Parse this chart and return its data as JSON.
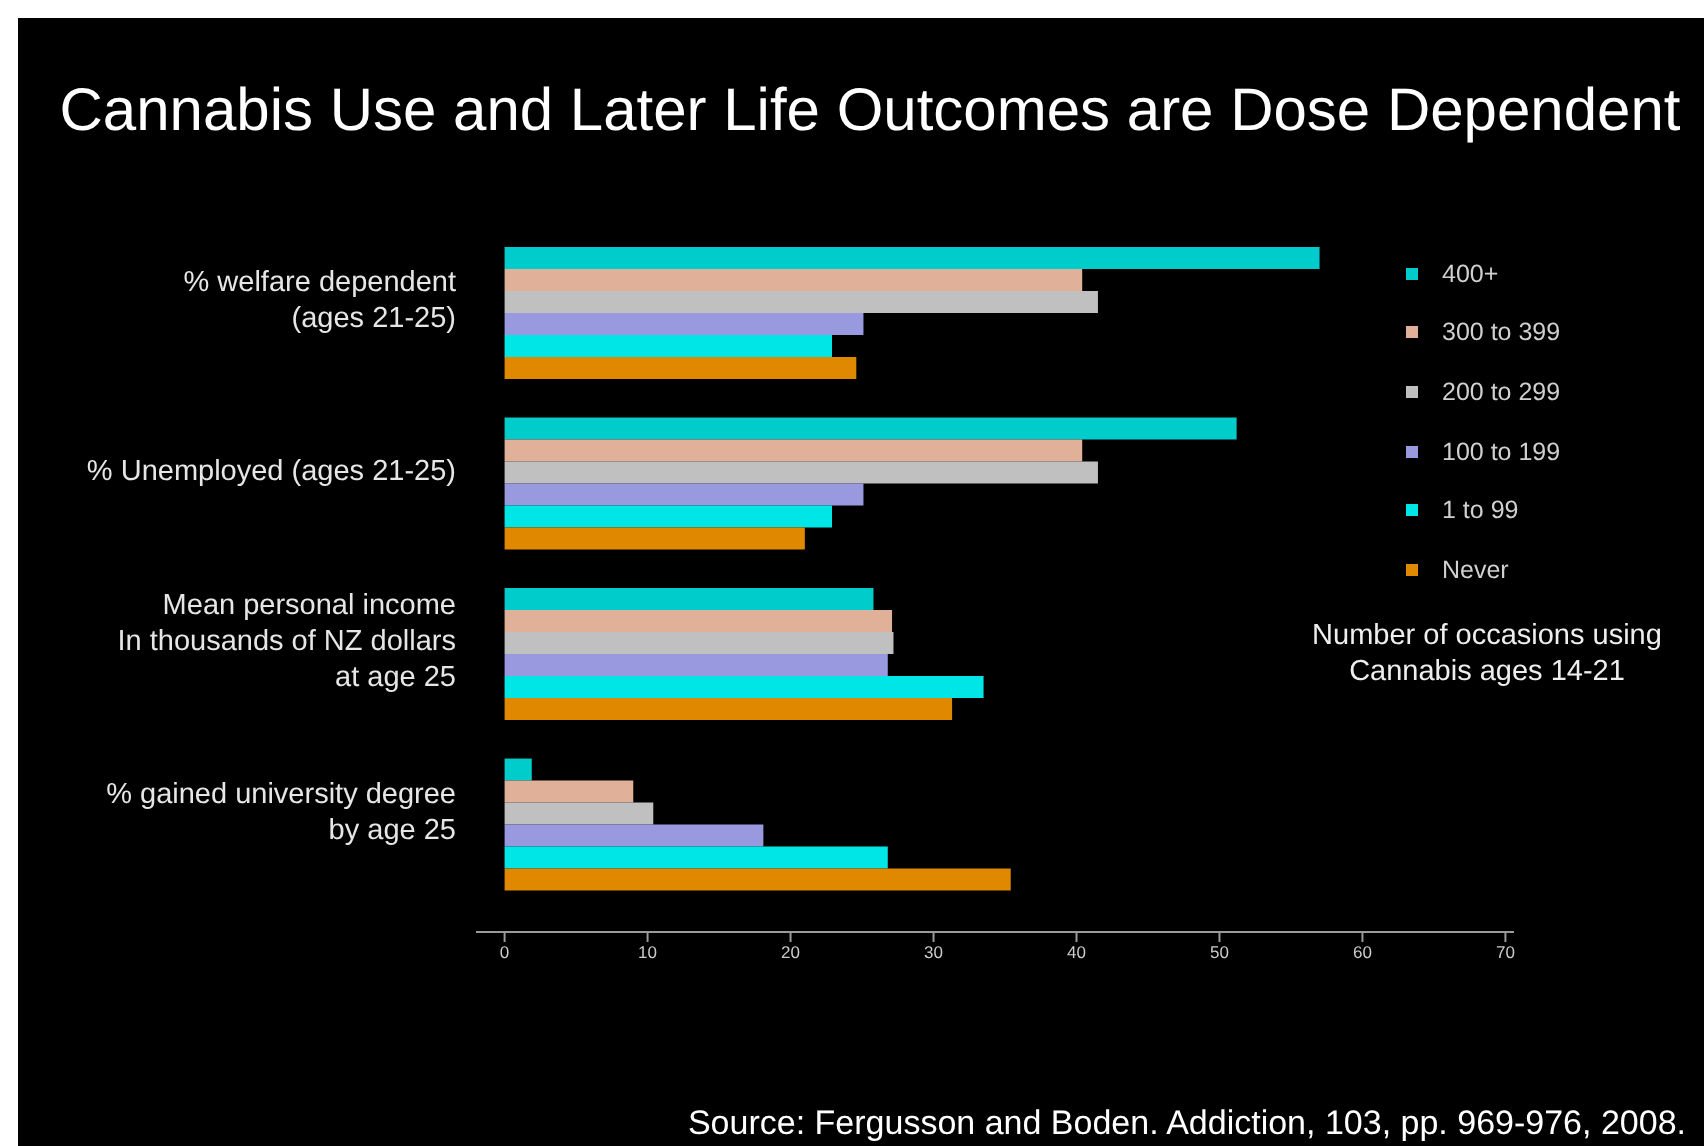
{
  "chart_data": {
    "type": "bar",
    "orientation": "horizontal",
    "title": "Cannabis Use and Later Life Outcomes are Dose Dependent",
    "categories": [
      "% welfare dependent\n(ages 21-25)",
      "% Unemployed (ages 21-25)",
      "Mean personal income\nIn thousands of NZ dollars\nat age 25",
      "% gained university degree\nby age 25"
    ],
    "series": [
      {
        "name": "400+",
        "color": "#00cccc",
        "values": [
          57,
          51.2,
          25.8,
          1.9
        ]
      },
      {
        "name": "300 to 399",
        "color": "#e0b098",
        "values": [
          40.4,
          40.4,
          27.1,
          9.0
        ]
      },
      {
        "name": "200 to 299",
        "color": "#c0c0c0",
        "values": [
          41.5,
          41.5,
          27.2,
          10.4
        ]
      },
      {
        "name": "100 to 199",
        "color": "#9999e0",
        "values": [
          25.1,
          25.1,
          26.8,
          18.1
        ]
      },
      {
        "name": "1 to 99",
        "color": "#00e5e5",
        "values": [
          22.9,
          22.9,
          33.5,
          26.8
        ]
      },
      {
        "name": "Never",
        "color": "#e08800",
        "values": [
          24.6,
          21.0,
          31.3,
          35.4
        ]
      }
    ],
    "xlim": [
      -2,
      70.6
    ],
    "xticks": [
      0,
      10,
      20,
      30,
      40,
      50,
      60,
      70
    ],
    "legend": "right",
    "legend_title": "Number of occasions using\nCannabis ages 14-21",
    "annotations": [
      "Source: Fergusson and Boden. Addiction, 103, pp. 969-976, 2008."
    ]
  }
}
